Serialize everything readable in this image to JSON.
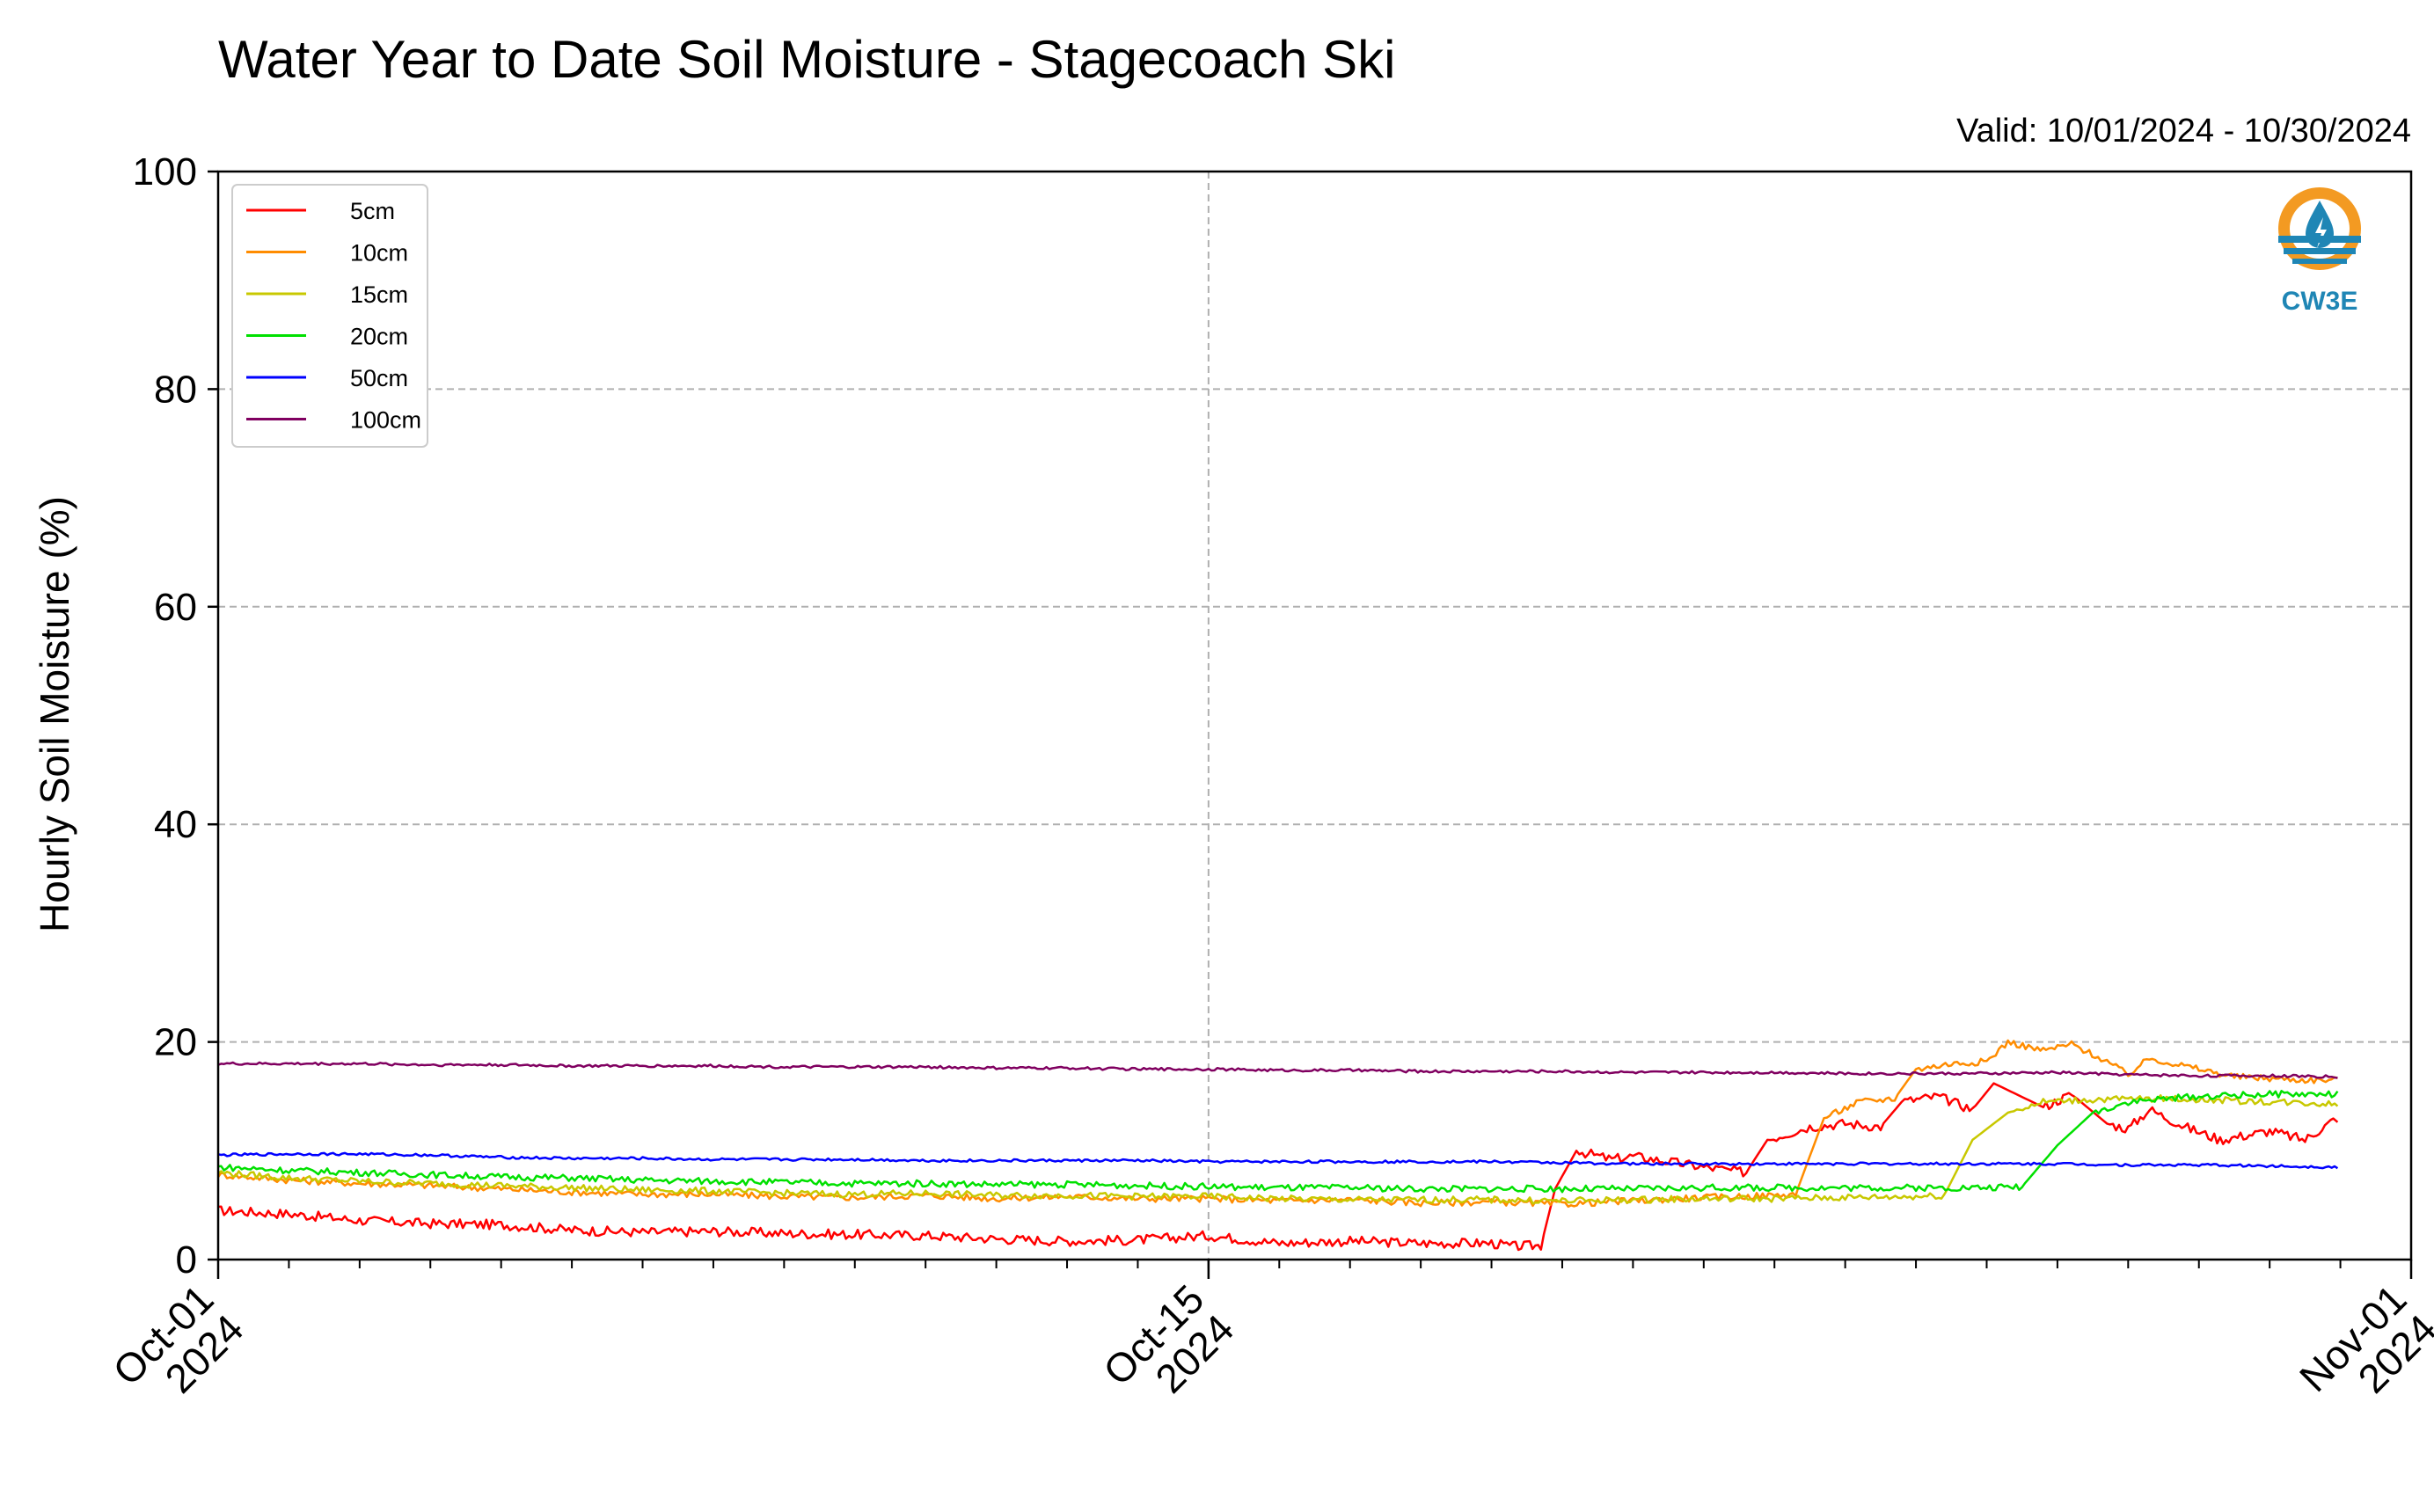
{
  "title": "Water Year to Date Soil Moisture - Stagecoach Ski",
  "subtitle": "Valid: 10/01/2024 - 10/30/2024",
  "logo": {
    "text": "CW3E",
    "icon": "cw3e-water-drop-logo",
    "colors": {
      "orange": "#f39a22",
      "blue": "#1f86b5"
    }
  },
  "chart_data": {
    "type": "line",
    "title": "Water Year to Date Soil Moisture - Stagecoach Ski",
    "ylabel": "Hourly Soil Moisture (%)",
    "xlabel": "",
    "ylim": [
      0,
      100
    ],
    "xlim": [
      "2024-10-01",
      "2024-11-01"
    ],
    "yticks": [
      "0",
      "20",
      "40",
      "60",
      "80",
      "100"
    ],
    "xticks": [
      {
        "date": "2024-10-01",
        "line1": "Oct-01",
        "line2": "2024"
      },
      {
        "date": "2024-10-15",
        "line1": "Oct-15",
        "line2": "2024"
      },
      {
        "date": "2024-11-01",
        "line1": "Nov-01",
        "line2": "2024"
      }
    ],
    "grid": true,
    "legend_position": "top-left",
    "series": [
      {
        "name": "5cm",
        "color": "#ff0000",
        "points": [
          [
            "2024-10-01",
            4.5
          ],
          [
            "2024-10-02",
            4.2
          ],
          [
            "2024-10-03",
            3.6
          ],
          [
            "2024-10-04",
            3.3
          ],
          [
            "2024-10-05",
            3.2
          ],
          [
            "2024-10-06",
            2.7
          ],
          [
            "2024-10-07",
            2.5
          ],
          [
            "2024-10-08",
            2.6
          ],
          [
            "2024-10-09",
            2.4
          ],
          [
            "2024-10-10",
            2.3
          ],
          [
            "2024-10-11",
            2.2
          ],
          [
            "2024-10-12",
            1.9
          ],
          [
            "2024-10-13",
            1.7
          ],
          [
            "2024-10-14",
            1.8
          ],
          [
            "2024-10-15",
            2.2
          ],
          [
            "2024-10-16",
            1.5
          ],
          [
            "2024-10-17",
            1.7
          ],
          [
            "2024-10-18",
            1.5
          ],
          [
            "2024-10-19",
            1.5
          ],
          [
            "2024-10-19.3",
            1.2
          ],
          [
            "2024-10-19.7",
            1.3
          ],
          [
            "2024-10-19.9",
            6.5
          ],
          [
            "2024-10-20.2",
            10.0
          ],
          [
            "2024-10-20.7",
            9.2
          ],
          [
            "2024-10-21",
            9.5
          ],
          [
            "2024-10-22",
            8.5
          ],
          [
            "2024-10-22.6",
            8.0
          ],
          [
            "2024-10-22.9",
            11.0
          ],
          [
            "2024-10-23.5",
            12.2
          ],
          [
            "2024-10-24",
            12.5
          ],
          [
            "2024-10-24.5",
            12.2
          ],
          [
            "2024-10-24.8",
            14.5
          ],
          [
            "2024-10-25.3",
            15.0
          ],
          [
            "2024-10-25.8",
            13.8
          ],
          [
            "2024-10-26.1",
            16.2
          ],
          [
            "2024-10-26.8",
            14.0
          ],
          [
            "2024-10-27.2",
            15.2
          ],
          [
            "2024-10-27.7",
            12.5
          ],
          [
            "2024-10-28",
            12.0
          ],
          [
            "2024-10-28.3",
            13.8
          ],
          [
            "2024-10-28.8",
            12.2
          ],
          [
            "2024-10-29.3",
            11.0
          ],
          [
            "2024-10-30",
            11.8
          ],
          [
            "2024-10-30.5",
            11.0
          ],
          [
            "2024-10-30.9",
            12.8
          ],
          [
            "2024-10-30.96",
            12.5
          ]
        ]
      },
      {
        "name": "10cm",
        "color": "#ff8c00",
        "points": [
          [
            "2024-10-01",
            7.8
          ],
          [
            "2024-10-02",
            7.3
          ],
          [
            "2024-10-03",
            7.0
          ],
          [
            "2024-10-04",
            6.8
          ],
          [
            "2024-10-05",
            6.5
          ],
          [
            "2024-10-06",
            6.2
          ],
          [
            "2024-10-07",
            6.0
          ],
          [
            "2024-10-08",
            6.0
          ],
          [
            "2024-10-09",
            5.8
          ],
          [
            "2024-10-10",
            5.7
          ],
          [
            "2024-10-11",
            5.9
          ],
          [
            "2024-10-12",
            5.6
          ],
          [
            "2024-10-13",
            5.8
          ],
          [
            "2024-10-14",
            5.6
          ],
          [
            "2024-10-15",
            5.6
          ],
          [
            "2024-10-16",
            5.4
          ],
          [
            "2024-10-17",
            5.5
          ],
          [
            "2024-10-18",
            5.2
          ],
          [
            "2024-10-19",
            5.3
          ],
          [
            "2024-10-20",
            5.1
          ],
          [
            "2024-10-21",
            5.4
          ],
          [
            "2024-10-22",
            5.7
          ],
          [
            "2024-10-23",
            5.9
          ],
          [
            "2024-10-23.3",
            6.0
          ],
          [
            "2024-10-23.7",
            13.0
          ],
          [
            "2024-10-24.2",
            14.5
          ],
          [
            "2024-10-24.7",
            14.8
          ],
          [
            "2024-10-25",
            17.5
          ],
          [
            "2024-10-25.5",
            18.0
          ],
          [
            "2024-10-26",
            18.2
          ],
          [
            "2024-10-26.3",
            20.0
          ],
          [
            "2024-10-26.8",
            19.2
          ],
          [
            "2024-10-27.2",
            19.8
          ],
          [
            "2024-10-27.7",
            18.2
          ],
          [
            "2024-10-28",
            17.0
          ],
          [
            "2024-10-28.3",
            18.5
          ],
          [
            "2024-10-29",
            17.5
          ],
          [
            "2024-10-29.5",
            16.8
          ],
          [
            "2024-10-30.5",
            16.5
          ],
          [
            "2024-10-30.96",
            16.5
          ]
        ]
      },
      {
        "name": "15cm",
        "color": "#c8c800",
        "points": [
          [
            "2024-10-01",
            8.0
          ],
          [
            "2024-10-02",
            7.5
          ],
          [
            "2024-10-03",
            7.2
          ],
          [
            "2024-10-04",
            7.0
          ],
          [
            "2024-10-05",
            6.8
          ],
          [
            "2024-10-06",
            6.6
          ],
          [
            "2024-10-07",
            6.4
          ],
          [
            "2024-10-08",
            6.3
          ],
          [
            "2024-10-09",
            6.1
          ],
          [
            "2024-10-10",
            6.0
          ],
          [
            "2024-10-11",
            6.1
          ],
          [
            "2024-10-12",
            5.9
          ],
          [
            "2024-10-13",
            5.9
          ],
          [
            "2024-10-14",
            5.8
          ],
          [
            "2024-10-15",
            5.8
          ],
          [
            "2024-10-16",
            5.6
          ],
          [
            "2024-10-17",
            5.5
          ],
          [
            "2024-10-18",
            5.5
          ],
          [
            "2024-10-19",
            5.5
          ],
          [
            "2024-10-20",
            5.4
          ],
          [
            "2024-10-21",
            5.5
          ],
          [
            "2024-10-22",
            5.6
          ],
          [
            "2024-10-23",
            5.6
          ],
          [
            "2024-10-24",
            5.7
          ],
          [
            "2024-10-25",
            5.8
          ],
          [
            "2024-10-25.4",
            5.9
          ],
          [
            "2024-10-25.8",
            11.0
          ],
          [
            "2024-10-26.3",
            13.5
          ],
          [
            "2024-10-26.8",
            14.5
          ],
          [
            "2024-10-27.5",
            14.7
          ],
          [
            "2024-10-28.5",
            14.8
          ],
          [
            "2024-10-29.5",
            14.6
          ],
          [
            "2024-10-30.5",
            14.4
          ],
          [
            "2024-10-30.96",
            14.3
          ]
        ]
      },
      {
        "name": "20cm",
        "color": "#00e000",
        "points": [
          [
            "2024-10-01",
            8.5
          ],
          [
            "2024-10-02",
            8.2
          ],
          [
            "2024-10-03",
            8.0
          ],
          [
            "2024-10-04",
            7.8
          ],
          [
            "2024-10-05",
            7.6
          ],
          [
            "2024-10-06",
            7.5
          ],
          [
            "2024-10-07",
            7.3
          ],
          [
            "2024-10-08",
            7.2
          ],
          [
            "2024-10-09",
            7.1
          ],
          [
            "2024-10-10",
            7.0
          ],
          [
            "2024-10-11",
            7.0
          ],
          [
            "2024-10-12",
            6.9
          ],
          [
            "2024-10-13",
            6.9
          ],
          [
            "2024-10-14",
            6.8
          ],
          [
            "2024-10-15",
            6.7
          ],
          [
            "2024-10-16",
            6.6
          ],
          [
            "2024-10-17",
            6.6
          ],
          [
            "2024-10-18",
            6.5
          ],
          [
            "2024-10-19",
            6.5
          ],
          [
            "2024-10-20",
            6.5
          ],
          [
            "2024-10-21",
            6.5
          ],
          [
            "2024-10-22",
            6.6
          ],
          [
            "2024-10-23",
            6.6
          ],
          [
            "2024-10-24",
            6.6
          ],
          [
            "2024-10-25",
            6.6
          ],
          [
            "2024-10-26",
            6.6
          ],
          [
            "2024-10-26.5",
            6.7
          ],
          [
            "2024-10-27",
            10.5
          ],
          [
            "2024-10-27.5",
            13.5
          ],
          [
            "2024-10-28",
            14.5
          ],
          [
            "2024-10-29",
            15.0
          ],
          [
            "2024-10-30",
            15.2
          ],
          [
            "2024-10-30.96",
            15.2
          ]
        ]
      },
      {
        "name": "50cm",
        "color": "#0000ff",
        "points": [
          [
            "2024-10-01",
            9.6
          ],
          [
            "2024-10-02",
            9.7
          ],
          [
            "2024-10-03",
            9.7
          ],
          [
            "2024-10-04",
            9.6
          ],
          [
            "2024-10-05",
            9.4
          ],
          [
            "2024-10-06",
            9.3
          ],
          [
            "2024-10-07",
            9.3
          ],
          [
            "2024-10-08",
            9.2
          ],
          [
            "2024-10-09",
            9.2
          ],
          [
            "2024-10-10",
            9.2
          ],
          [
            "2024-10-11",
            9.1
          ],
          [
            "2024-10-12",
            9.1
          ],
          [
            "2024-10-13",
            9.1
          ],
          [
            "2024-10-14",
            9.1
          ],
          [
            "2024-10-15",
            9.0
          ],
          [
            "2024-10-16",
            9.0
          ],
          [
            "2024-10-17",
            9.0
          ],
          [
            "2024-10-18",
            9.0
          ],
          [
            "2024-10-19",
            9.0
          ],
          [
            "2024-10-20",
            8.9
          ],
          [
            "2024-10-21",
            8.8
          ],
          [
            "2024-10-22",
            8.8
          ],
          [
            "2024-10-23",
            8.8
          ],
          [
            "2024-10-24",
            8.8
          ],
          [
            "2024-10-25",
            8.8
          ],
          [
            "2024-10-26",
            8.8
          ],
          [
            "2024-10-27",
            8.8
          ],
          [
            "2024-10-28",
            8.7
          ],
          [
            "2024-10-29",
            8.7
          ],
          [
            "2024-10-30",
            8.6
          ],
          [
            "2024-10-30.96",
            8.5
          ]
        ]
      },
      {
        "name": "100cm",
        "color": "#800060",
        "points": [
          [
            "2024-10-01",
            18.0
          ],
          [
            "2024-10-02",
            18.0
          ],
          [
            "2024-10-03",
            18.0
          ],
          [
            "2024-10-04",
            17.9
          ],
          [
            "2024-10-05",
            17.9
          ],
          [
            "2024-10-06",
            17.8
          ],
          [
            "2024-10-07",
            17.8
          ],
          [
            "2024-10-08",
            17.8
          ],
          [
            "2024-10-09",
            17.7
          ],
          [
            "2024-10-10",
            17.7
          ],
          [
            "2024-10-11",
            17.7
          ],
          [
            "2024-10-12",
            17.6
          ],
          [
            "2024-10-13",
            17.6
          ],
          [
            "2024-10-14",
            17.5
          ],
          [
            "2024-10-15",
            17.5
          ],
          [
            "2024-10-16",
            17.4
          ],
          [
            "2024-10-17",
            17.4
          ],
          [
            "2024-10-18",
            17.3
          ],
          [
            "2024-10-19",
            17.3
          ],
          [
            "2024-10-20",
            17.3
          ],
          [
            "2024-10-21",
            17.2
          ],
          [
            "2024-10-22",
            17.2
          ],
          [
            "2024-10-23",
            17.2
          ],
          [
            "2024-10-24",
            17.1
          ],
          [
            "2024-10-25",
            17.1
          ],
          [
            "2024-10-26",
            17.1
          ],
          [
            "2024-10-27",
            17.2
          ],
          [
            "2024-10-28",
            17.0
          ],
          [
            "2024-10-29",
            16.9
          ],
          [
            "2024-10-30",
            16.9
          ],
          [
            "2024-10-30.96",
            16.8
          ]
        ]
      }
    ]
  }
}
